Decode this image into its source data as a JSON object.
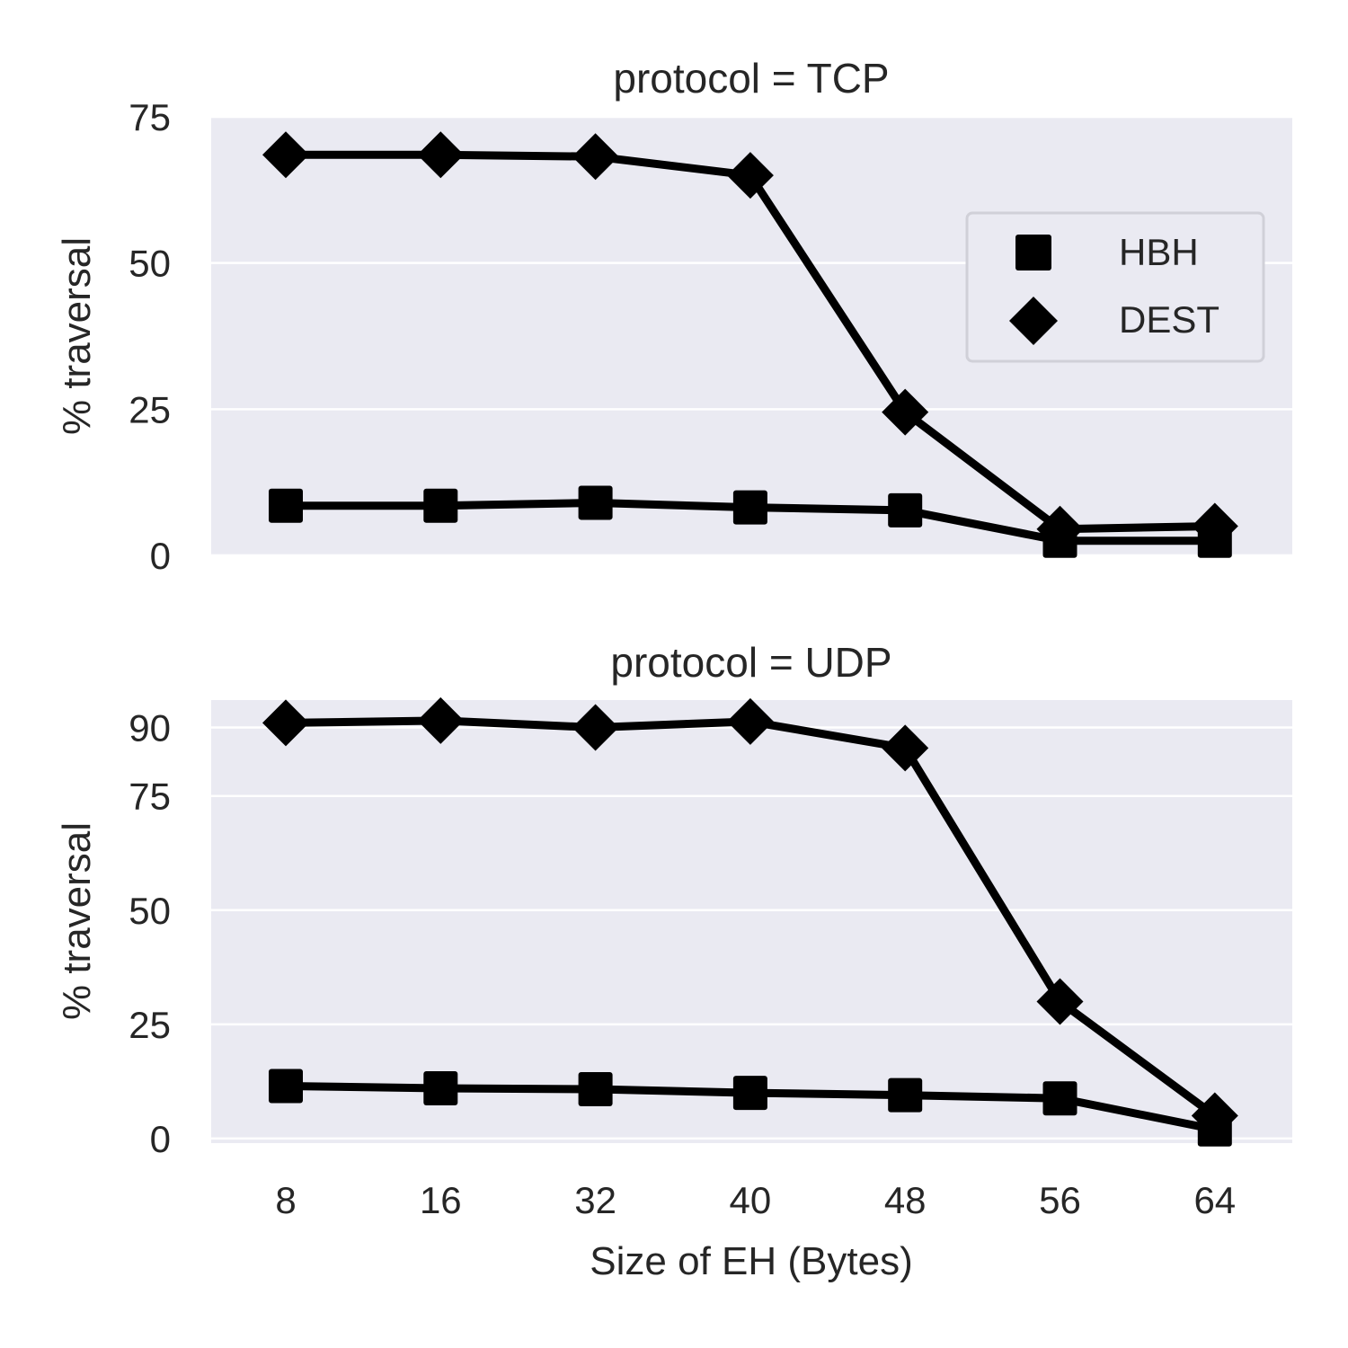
{
  "colors": {
    "panel_bg": "#eaeaf2",
    "grid": "#ffffff",
    "series": "#000000",
    "text": "#262626"
  },
  "chart_data": [
    {
      "type": "line",
      "title": "protocol = TCP",
      "xlabel": "",
      "ylabel": "% traversal",
      "categories": [
        "8",
        "16",
        "32",
        "40",
        "48",
        "56",
        "64"
      ],
      "yticks": [
        0,
        25,
        50,
        75
      ],
      "ylim": [
        0,
        75
      ],
      "grid": true,
      "legend": {
        "position": "top-right",
        "entries": [
          {
            "label": "HBH",
            "marker": "square"
          },
          {
            "label": "DEST",
            "marker": "diamond"
          }
        ]
      },
      "series": [
        {
          "name": "HBH",
          "marker": "square",
          "values": [
            8.5,
            8.5,
            9.0,
            8.2,
            7.7,
            2.5,
            2.5
          ]
        },
        {
          "name": "DEST",
          "marker": "diamond",
          "values": [
            68.5,
            68.5,
            68.2,
            65.0,
            24.5,
            4.5,
            5.0
          ]
        }
      ]
    },
    {
      "type": "line",
      "title": "protocol = UDP",
      "xlabel": "Size of EH (Bytes)",
      "ylabel": "% traversal",
      "categories": [
        "8",
        "16",
        "32",
        "40",
        "48",
        "56",
        "64"
      ],
      "yticks": [
        0,
        25,
        50,
        75,
        90
      ],
      "ylim": [
        -1,
        96
      ],
      "grid": true,
      "series": [
        {
          "name": "HBH",
          "marker": "square",
          "values": [
            11.5,
            11.0,
            10.8,
            10.0,
            9.5,
            8.8,
            2.0
          ]
        },
        {
          "name": "DEST",
          "marker": "diamond",
          "values": [
            91.0,
            91.5,
            90.0,
            91.3,
            85.5,
            30.0,
            5.0
          ]
        }
      ]
    }
  ]
}
